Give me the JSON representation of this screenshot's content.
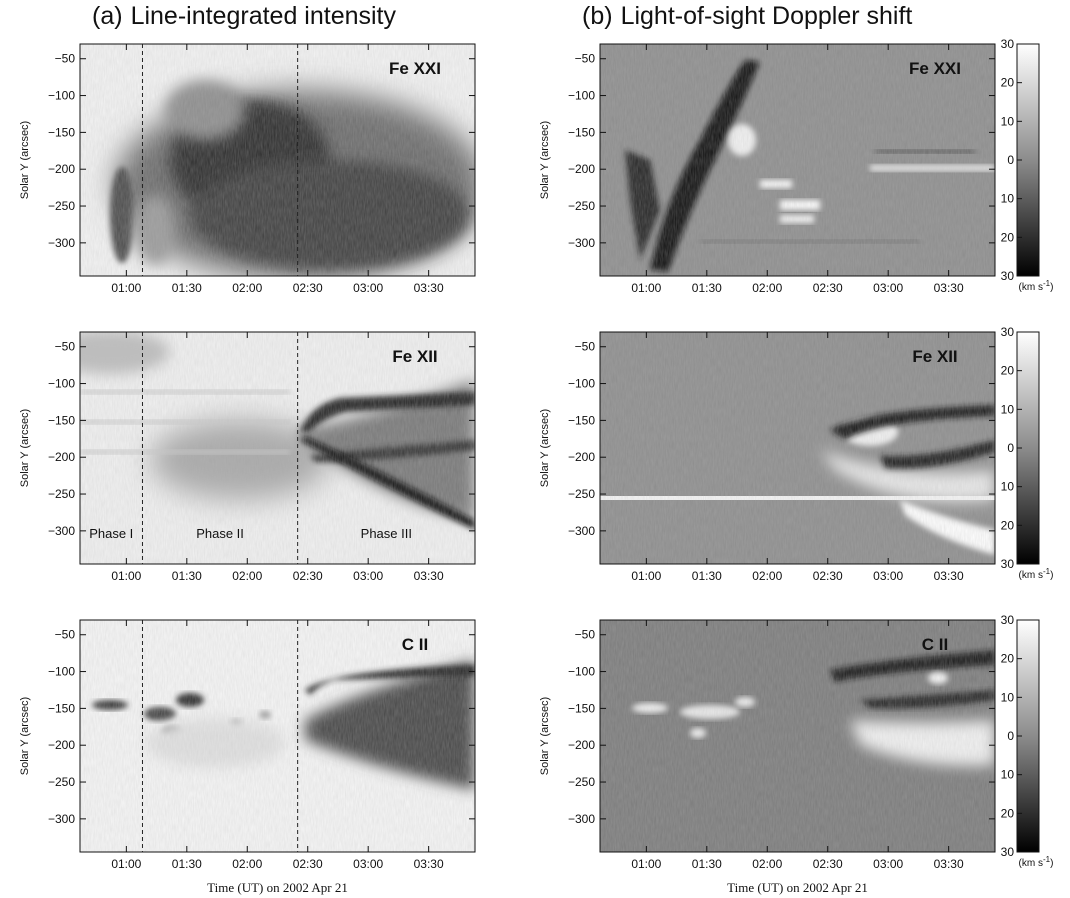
{
  "column_titles": {
    "a": {
      "tag": "(a)",
      "text": "Line-integrated intensity"
    },
    "b": {
      "tag": "(b)",
      "text": "Light-of-sight Doppler shift"
    }
  },
  "colors": {
    "background": "#ffffff",
    "intensity_low": "#f4f4f4",
    "intensity_high": "#1e1e1e",
    "doppler_mid": "#8c8c8c",
    "doppler_red": "#141414",
    "doppler_blue": "#f6f6f6"
  },
  "chart_data": [
    {
      "id": "a1",
      "type": "heatmap",
      "panel": "intensity",
      "line": "Fe XXI",
      "ylabel": "Solar Y (arcsec)",
      "xlabel": "",
      "xlim": [
        "00:37",
        "03:53"
      ],
      "ylim": [
        -345,
        -30
      ],
      "xticks": [
        "01:00",
        "01:30",
        "02:00",
        "02:30",
        "03:00",
        "03:30"
      ],
      "yticks": [
        -50,
        -100,
        -150,
        -200,
        -250,
        -300
      ],
      "phase_boundaries": [
        "01:08",
        "02:25"
      ]
    },
    {
      "id": "a2",
      "type": "heatmap",
      "panel": "intensity",
      "line": "Fe XII",
      "ylabel": "Solar Y (arcsec)",
      "xlabel": "",
      "xlim": [
        "00:37",
        "03:53"
      ],
      "ylim": [
        -345,
        -30
      ],
      "xticks": [
        "01:00",
        "01:30",
        "02:00",
        "02:30",
        "03:00",
        "03:30"
      ],
      "yticks": [
        -50,
        -100,
        -150,
        -200,
        -250,
        -300
      ],
      "phase_boundaries": [
        "01:08",
        "02:25"
      ],
      "phases": [
        "Phase I",
        "Phase II",
        "Phase III"
      ]
    },
    {
      "id": "a3",
      "type": "heatmap",
      "panel": "intensity",
      "line": "C II",
      "ylabel": "Solar Y (arcsec)",
      "xlabel": "Time (UT) on 2002 Apr 21",
      "xlim": [
        "00:37",
        "03:53"
      ],
      "ylim": [
        -345,
        -30
      ],
      "xticks": [
        "01:00",
        "01:30",
        "02:00",
        "02:30",
        "03:00",
        "03:30"
      ],
      "yticks": [
        -50,
        -100,
        -150,
        -200,
        -250,
        -300
      ],
      "phase_boundaries": [
        "01:08",
        "02:25"
      ]
    },
    {
      "id": "b1",
      "type": "heatmap",
      "panel": "doppler",
      "line": "Fe XXI",
      "ylabel": "Solar Y (arcsec)",
      "xlabel": "",
      "xlim": [
        "00:37",
        "03:53"
      ],
      "ylim": [
        -345,
        -30
      ],
      "xticks": [
        "01:00",
        "01:30",
        "02:00",
        "02:30",
        "03:00",
        "03:30"
      ],
      "yticks": [
        -50,
        -100,
        -150,
        -200,
        -250,
        -300
      ],
      "colorbar": {
        "ticks": [
          30,
          20,
          10,
          0,
          -10,
          -20,
          -30
        ],
        "tick_labels": [
          "30",
          "20",
          "10",
          "0",
          "10",
          "20",
          "30"
        ],
        "range": [
          -30,
          30
        ],
        "unit_base": "(km s",
        "unit_exp": "-1",
        "unit_close": ")"
      }
    },
    {
      "id": "b2",
      "type": "heatmap",
      "panel": "doppler",
      "line": "Fe XII",
      "ylabel": "Solar Y (arcsec)",
      "xlabel": "",
      "xlim": [
        "00:37",
        "03:53"
      ],
      "ylim": [
        -345,
        -30
      ],
      "xticks": [
        "01:00",
        "01:30",
        "02:00",
        "02:30",
        "03:00",
        "03:30"
      ],
      "yticks": [
        -50,
        -100,
        -150,
        -200,
        -250,
        -300
      ],
      "colorbar": {
        "ticks": [
          30,
          20,
          10,
          0,
          -10,
          -20,
          -30
        ],
        "tick_labels": [
          "30",
          "20",
          "10",
          "0",
          "10",
          "20",
          "30"
        ],
        "range": [
          -30,
          30
        ],
        "unit_base": "(km s",
        "unit_exp": "-1",
        "unit_close": ")"
      }
    },
    {
      "id": "b3",
      "type": "heatmap",
      "panel": "doppler",
      "line": "C II",
      "ylabel": "Solar Y (arcsec)",
      "xlabel": "Time (UT) on 2002 Apr 21",
      "xlim": [
        "00:37",
        "03:53"
      ],
      "ylim": [
        -345,
        -30
      ],
      "xticks": [
        "01:00",
        "01:30",
        "02:00",
        "02:30",
        "03:00",
        "03:30"
      ],
      "yticks": [
        -50,
        -100,
        -150,
        -200,
        -250,
        -300
      ],
      "colorbar": {
        "ticks": [
          30,
          20,
          10,
          0,
          -10,
          -20,
          -30
        ],
        "tick_labels": [
          "30",
          "20",
          "10",
          "0",
          "10",
          "20",
          "30"
        ],
        "range": [
          -30,
          30
        ],
        "unit_base": "(km s",
        "unit_exp": "-1",
        "unit_close": ")"
      }
    }
  ]
}
